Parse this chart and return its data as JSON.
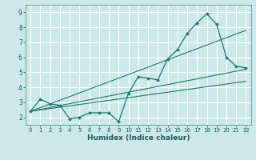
{
  "xlabel": "Humidex (Indice chaleur)",
  "bg_color": "#cce8e8",
  "grid_color": "#ffffff",
  "line_color": "#1a7a6e",
  "ylim": [
    1.5,
    9.5
  ],
  "xlim": [
    -0.5,
    22.5
  ],
  "yticks": [
    2,
    3,
    4,
    5,
    6,
    7,
    8,
    9
  ],
  "xticks": [
    0,
    1,
    2,
    3,
    4,
    5,
    6,
    7,
    8,
    9,
    10,
    11,
    12,
    13,
    14,
    15,
    16,
    17,
    18,
    19,
    20,
    21,
    22
  ],
  "main_x": [
    0,
    1,
    2,
    3,
    4,
    5,
    6,
    7,
    8,
    9,
    10,
    11,
    12,
    13,
    14,
    15,
    16,
    17,
    18,
    19,
    20,
    21,
    22
  ],
  "main_y": [
    2.4,
    3.2,
    2.9,
    2.8,
    1.9,
    2.0,
    2.3,
    2.3,
    2.3,
    1.7,
    3.6,
    4.7,
    4.6,
    4.5,
    5.9,
    6.5,
    7.6,
    8.3,
    8.9,
    8.2,
    6.0,
    5.4,
    5.3
  ],
  "line1": {
    "x": [
      0,
      22
    ],
    "y": [
      2.4,
      7.8
    ]
  },
  "line2": {
    "x": [
      0,
      22
    ],
    "y": [
      2.4,
      5.2
    ]
  },
  "line3": {
    "x": [
      0,
      22
    ],
    "y": [
      2.4,
      4.4
    ]
  }
}
